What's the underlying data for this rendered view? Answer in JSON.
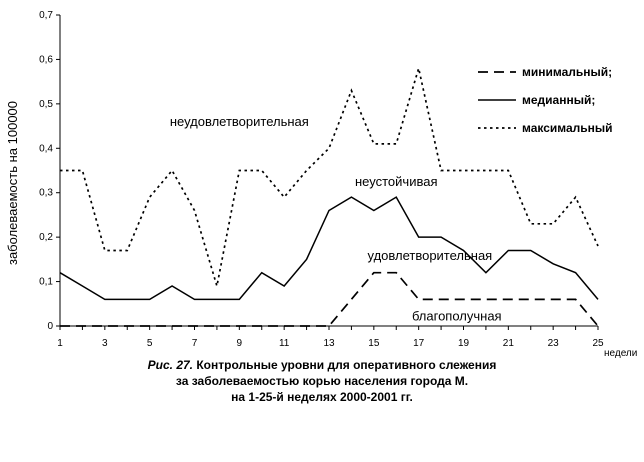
{
  "chart_data": {
    "type": "line",
    "ylabel": "заболеваемость на 100000",
    "xlabel": "недели",
    "ylim": [
      0,
      0.7
    ],
    "yticks": [
      "0",
      "0,1",
      "0,2",
      "0,3",
      "0,4",
      "0,5",
      "0,6",
      "0,7"
    ],
    "xlim": [
      1,
      25
    ],
    "xticks": [
      "1",
      "3",
      "5",
      "7",
      "9",
      "11",
      "13",
      "15",
      "17",
      "19",
      "21",
      "23",
      "25"
    ],
    "x": [
      1,
      2,
      3,
      4,
      5,
      6,
      7,
      8,
      9,
      10,
      11,
      12,
      13,
      14,
      15,
      16,
      17,
      18,
      19,
      20,
      21,
      22,
      23,
      24,
      25
    ],
    "series": [
      {
        "name": "минимальный;",
        "style": "dashed",
        "values": [
          0,
          0,
          0,
          0,
          0,
          0,
          0,
          0,
          0,
          0,
          0,
          0,
          0,
          0.06,
          0.12,
          0.12,
          0.06,
          0.06,
          0.06,
          0.06,
          0.06,
          0.06,
          0.06,
          0.06,
          0
        ]
      },
      {
        "name": "медианный;",
        "style": "solid",
        "values": [
          0.12,
          0.09,
          0.06,
          0.06,
          0.06,
          0.09,
          0.06,
          0.06,
          0.06,
          0.12,
          0.09,
          0.15,
          0.26,
          0.29,
          0.26,
          0.29,
          0.2,
          0.2,
          0.17,
          0.12,
          0.17,
          0.17,
          0.14,
          0.12,
          0.06
        ]
      },
      {
        "name": "максимальный",
        "style": "dotted",
        "values": [
          0.35,
          0.35,
          0.17,
          0.17,
          0.29,
          0.35,
          0.26,
          0.09,
          0.35,
          0.35,
          0.29,
          0.35,
          0.4,
          0.53,
          0.41,
          0.41,
          0.58,
          0.35,
          0.35,
          0.35,
          0.35,
          0.23,
          0.23,
          0.29,
          0.18
        ]
      }
    ],
    "legend_position": "top-right",
    "annotations": [
      {
        "text": "неудовлетворительная",
        "x": 9,
        "y": 0.45
      },
      {
        "text": "неустойчивая",
        "x": 16,
        "y": 0.315
      },
      {
        "text": "удовлетворительная",
        "x": 17.5,
        "y": 0.148
      },
      {
        "text": "благополучная",
        "x": 18.7,
        "y": 0.012
      }
    ]
  },
  "caption": {
    "fig_label": "Рис. 27.",
    "line1": "Контрольные  уровни для оперативного слежения",
    "line2": "за заболеваемостью корью населения города М.",
    "line3": "на 1-25-й неделях 2000-2001 гг."
  }
}
